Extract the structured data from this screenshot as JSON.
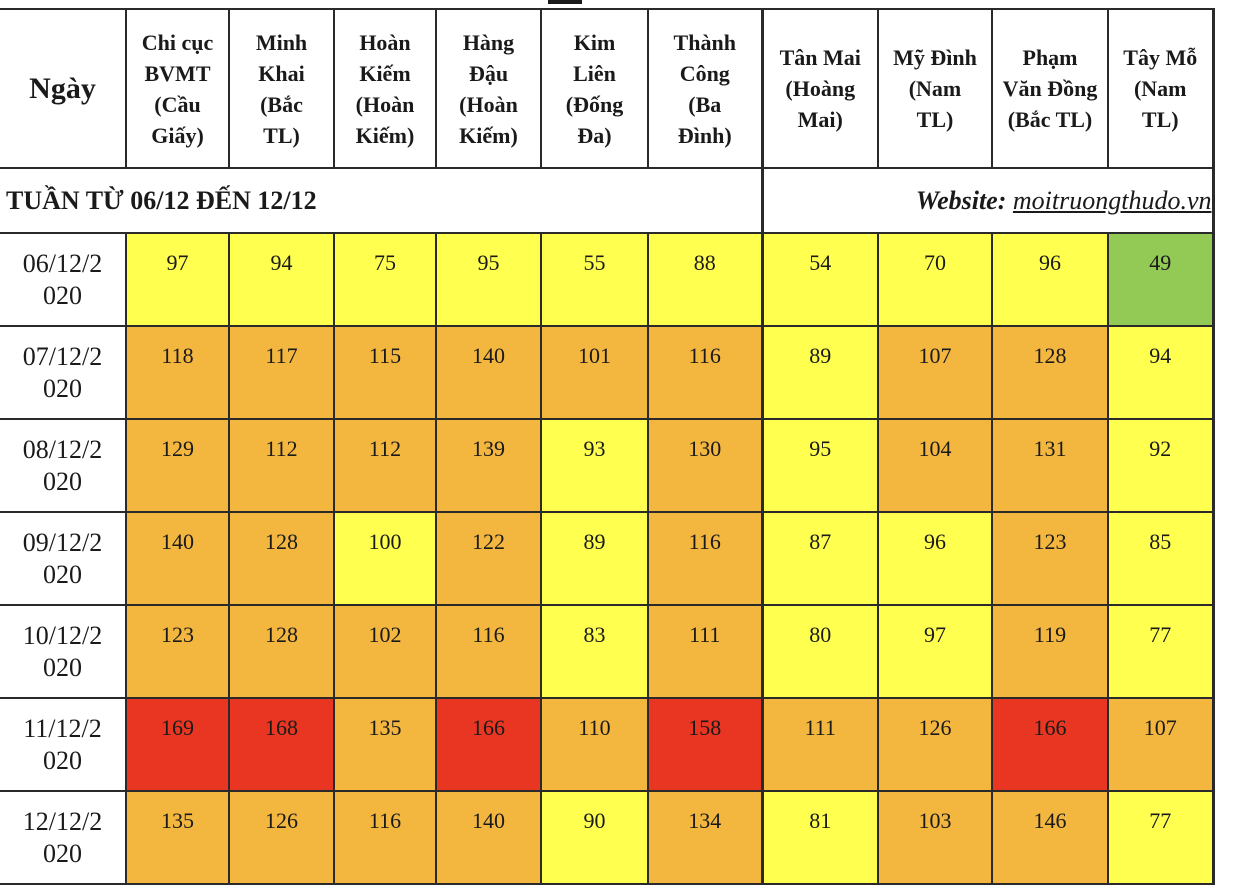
{
  "header": {
    "date_col": "Ngày",
    "stations": [
      [
        "Chi cục",
        "BVMT",
        "(Cầu",
        "Giấy)"
      ],
      [
        "Minh",
        "Khai",
        "(Bắc",
        "TL)"
      ],
      [
        "Hoàn",
        "Kiếm",
        "(Hoàn",
        "Kiếm)"
      ],
      [
        "Hàng",
        "Đậu",
        "(Hoàn",
        "Kiếm)"
      ],
      [
        "Kim",
        "Liên",
        "(Đống",
        "Đa)"
      ],
      [
        "Thành",
        "Công",
        "(Ba",
        "Đình)"
      ],
      [
        "Tân Mai",
        "(Hoàng",
        "Mai)"
      ],
      [
        "Mỹ Đình",
        "(Nam",
        "TL)"
      ],
      [
        "Phạm",
        "Văn Đồng",
        "(Bắc TL)"
      ],
      [
        "Tây Mỗ",
        "(Nam",
        "TL)"
      ]
    ]
  },
  "week": {
    "title": "TUẦN TỪ 06/12 ĐẾN 12/12",
    "website_label": "Website:",
    "website_url": "moitruongthudo.vn"
  },
  "rows": [
    {
      "date": [
        "06/12/2",
        "020"
      ],
      "values": [
        "97",
        "94",
        "75",
        "95",
        "55",
        "88",
        "54",
        "70",
        "96",
        "49"
      ]
    },
    {
      "date": [
        "07/12/2",
        "020"
      ],
      "values": [
        "118",
        "117",
        "115",
        "140",
        "101",
        "116",
        "89",
        "107",
        "128",
        "94"
      ]
    },
    {
      "date": [
        "08/12/2",
        "020"
      ],
      "values": [
        "129",
        "112",
        "112",
        "139",
        "93",
        "130",
        "95",
        "104",
        "131",
        "92"
      ]
    },
    {
      "date": [
        "09/12/2",
        "020"
      ],
      "values": [
        "140",
        "128",
        "100",
        "122",
        "89",
        "116",
        "87",
        "96",
        "123",
        "85"
      ]
    },
    {
      "date": [
        "10/12/2",
        "020"
      ],
      "values": [
        "123",
        "128",
        "102",
        "116",
        "83",
        "111",
        "80",
        "97",
        "119",
        "77"
      ]
    },
    {
      "date": [
        "11/12/2",
        "020"
      ],
      "values": [
        "169",
        "168",
        "135",
        "166",
        "110",
        "158",
        "111",
        "126",
        "166",
        "107"
      ]
    },
    {
      "date": [
        "12/12/2",
        "020"
      ],
      "values": [
        "135",
        "126",
        "116",
        "140",
        "90",
        "134",
        "81",
        "103",
        "146",
        "77"
      ]
    }
  ],
  "colors": {
    "green": "#93c955",
    "yellow": "#ffff50",
    "orange": "#f3b63f",
    "red": "#e83622"
  }
}
